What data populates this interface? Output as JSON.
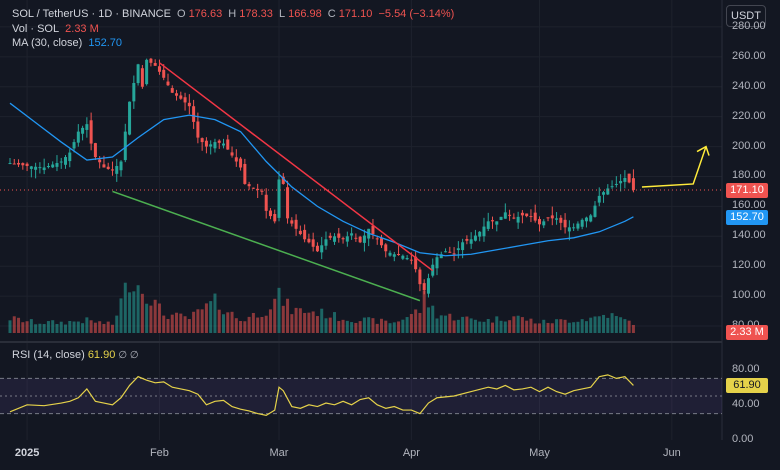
{
  "legend": {
    "symbol": "SOL / TetherUS · 1D · BINANCE",
    "o_label": "O",
    "o": "176.63",
    "h_label": "H",
    "h": "178.33",
    "l_label": "L",
    "l": "166.98",
    "c_label": "C",
    "c": "171.10",
    "change": "−5.54 (−3.14%)",
    "vol_label": "Vol · SOL",
    "vol": "2.33 M",
    "ma_label": "MA (30, close)",
    "ma": "152.70",
    "rsi_label": "RSI (14, close)",
    "rsi": "61.90",
    "rsi_sym": "∅ ∅"
  },
  "currency_button": "USDT",
  "price_tags": {
    "last": "171.10",
    "ma": "152.70",
    "vol": "2.33 M",
    "rsi": "61.90"
  },
  "colors": {
    "up": "#26a69a",
    "down": "#ef5350",
    "ma": "#2196f3",
    "rsi": "#e5d24a",
    "resistance": "#f23645",
    "support": "#4caf50",
    "arrow": "#ffeb3b"
  },
  "chart_data": {
    "type": "candlestick",
    "price_axis": [
      280,
      260,
      240,
      220,
      200,
      180,
      160,
      140,
      120,
      100,
      80
    ],
    "price_axis_labels": [
      "280.00",
      "260.00",
      "240.00",
      "220.00",
      "200.00",
      "180.00",
      "160.00",
      "140.00",
      "120.00",
      "100.00",
      "80.00"
    ],
    "ylim": [
      72,
      298
    ],
    "rsi_axis_labels": [
      "80.00",
      "40.00",
      "0.00"
    ],
    "rsi_axis_values": [
      80,
      40,
      0
    ],
    "rsi_ylim": [
      0,
      100
    ],
    "rsi_band": [
      30,
      70
    ],
    "x_labels": [
      "2025",
      "Feb",
      "Mar",
      "Apr",
      "May",
      "Jun"
    ],
    "x_label_days": [
      4,
      35,
      63,
      94,
      124,
      155
    ],
    "close_path": [
      [
        0,
        189
      ],
      [
        4,
        187
      ],
      [
        8,
        186
      ],
      [
        12,
        190
      ],
      [
        14,
        196
      ],
      [
        16,
        210
      ],
      [
        18,
        215
      ],
      [
        19,
        202
      ],
      [
        20,
        193
      ],
      [
        22,
        186
      ],
      [
        24,
        184
      ],
      [
        26,
        190
      ],
      [
        28,
        230
      ],
      [
        30,
        255
      ],
      [
        31,
        240
      ],
      [
        32,
        258
      ],
      [
        34,
        254
      ],
      [
        36,
        246
      ],
      [
        38,
        236
      ],
      [
        40,
        232
      ],
      [
        42,
        227
      ],
      [
        44,
        206
      ],
      [
        46,
        200
      ],
      [
        48,
        203
      ],
      [
        50,
        202
      ],
      [
        52,
        194
      ],
      [
        54,
        186
      ],
      [
        55,
        175
      ],
      [
        57,
        172
      ],
      [
        59,
        170
      ],
      [
        60,
        157
      ],
      [
        62,
        150
      ],
      [
        63,
        178
      ],
      [
        64,
        175
      ],
      [
        65,
        152
      ],
      [
        67,
        145
      ],
      [
        69,
        138
      ],
      [
        70,
        136
      ],
      [
        72,
        130
      ],
      [
        74,
        138
      ],
      [
        76,
        140
      ],
      [
        78,
        138
      ],
      [
        80,
        142
      ],
      [
        82,
        136
      ],
      [
        84,
        145
      ],
      [
        86,
        138
      ],
      [
        88,
        130
      ],
      [
        90,
        128
      ],
      [
        92,
        127
      ],
      [
        94,
        124
      ],
      [
        95,
        118
      ],
      [
        96,
        108
      ],
      [
        97,
        104
      ],
      [
        98,
        112
      ],
      [
        99,
        121
      ],
      [
        100,
        126
      ],
      [
        102,
        130
      ],
      [
        104,
        128
      ],
      [
        106,
        136
      ],
      [
        108,
        138
      ],
      [
        110,
        143
      ],
      [
        112,
        150
      ],
      [
        114,
        150
      ],
      [
        116,
        156
      ],
      [
        118,
        152
      ],
      [
        120,
        154
      ],
      [
        122,
        153
      ],
      [
        124,
        148
      ],
      [
        126,
        152
      ],
      [
        128,
        152
      ],
      [
        130,
        146
      ],
      [
        132,
        146
      ],
      [
        134,
        151
      ],
      [
        136,
        154
      ],
      [
        138,
        167
      ],
      [
        140,
        172
      ],
      [
        142,
        175
      ],
      [
        144,
        179
      ],
      [
        145,
        176
      ],
      [
        146,
        171
      ]
    ],
    "ma_path": [
      [
        0,
        229
      ],
      [
        6,
        216
      ],
      [
        12,
        203
      ],
      [
        18,
        191
      ],
      [
        24,
        193
      ],
      [
        30,
        206
      ],
      [
        36,
        218
      ],
      [
        42,
        221
      ],
      [
        48,
        218
      ],
      [
        54,
        210
      ],
      [
        60,
        190
      ],
      [
        66,
        173
      ],
      [
        72,
        160
      ],
      [
        78,
        150
      ],
      [
        84,
        142
      ],
      [
        90,
        136
      ],
      [
        96,
        129
      ],
      [
        102,
        127
      ],
      [
        108,
        128
      ],
      [
        114,
        131
      ],
      [
        120,
        134
      ],
      [
        126,
        137
      ],
      [
        132,
        139
      ],
      [
        138,
        143
      ],
      [
        144,
        150
      ],
      [
        146,
        153
      ]
    ],
    "volume_path": [
      [
        0,
        14
      ],
      [
        6,
        10
      ],
      [
        12,
        10
      ],
      [
        18,
        12
      ],
      [
        24,
        8
      ],
      [
        28,
        52
      ],
      [
        30,
        46
      ],
      [
        32,
        38
      ],
      [
        36,
        18
      ],
      [
        42,
        14
      ],
      [
        48,
        30
      ],
      [
        54,
        12
      ],
      [
        60,
        22
      ],
      [
        63,
        35
      ],
      [
        66,
        22
      ],
      [
        72,
        20
      ],
      [
        78,
        14
      ],
      [
        84,
        12
      ],
      [
        90,
        10
      ],
      [
        96,
        22
      ],
      [
        97,
        34
      ],
      [
        100,
        18
      ],
      [
        106,
        14
      ],
      [
        112,
        12
      ],
      [
        118,
        16
      ],
      [
        124,
        10
      ],
      [
        130,
        12
      ],
      [
        136,
        14
      ],
      [
        140,
        18
      ],
      [
        144,
        12
      ],
      [
        146,
        10
      ]
    ],
    "rsi_path": [
      [
        0,
        32
      ],
      [
        4,
        40
      ],
      [
        8,
        39
      ],
      [
        12,
        42
      ],
      [
        14,
        44
      ],
      [
        16,
        48
      ],
      [
        18,
        58
      ],
      [
        20,
        44
      ],
      [
        22,
        42
      ],
      [
        24,
        40
      ],
      [
        26,
        48
      ],
      [
        28,
        62
      ],
      [
        30,
        72
      ],
      [
        32,
        68
      ],
      [
        34,
        65
      ],
      [
        36,
        66
      ],
      [
        38,
        60
      ],
      [
        40,
        58
      ],
      [
        42,
        56
      ],
      [
        44,
        52
      ],
      [
        46,
        40
      ],
      [
        48,
        44
      ],
      [
        50,
        45
      ],
      [
        52,
        38
      ],
      [
        54,
        35
      ],
      [
        56,
        33
      ],
      [
        58,
        30
      ],
      [
        60,
        28
      ],
      [
        62,
        34
      ],
      [
        63,
        60
      ],
      [
        64,
        56
      ],
      [
        66,
        38
      ],
      [
        68,
        36
      ],
      [
        70,
        40
      ],
      [
        72,
        38
      ],
      [
        74,
        42
      ],
      [
        76,
        40
      ],
      [
        78,
        44
      ],
      [
        80,
        40
      ],
      [
        82,
        46
      ],
      [
        84,
        48
      ],
      [
        86,
        40
      ],
      [
        88,
        36
      ],
      [
        90,
        38
      ],
      [
        92,
        34
      ],
      [
        94,
        34
      ],
      [
        96,
        30
      ],
      [
        98,
        42
      ],
      [
        100,
        48
      ],
      [
        104,
        50
      ],
      [
        108,
        55
      ],
      [
        112,
        60
      ],
      [
        114,
        58
      ],
      [
        116,
        62
      ],
      [
        118,
        57
      ],
      [
        120,
        58
      ],
      [
        122,
        60
      ],
      [
        124,
        55
      ],
      [
        126,
        60
      ],
      [
        128,
        55
      ],
      [
        130,
        52
      ],
      [
        132,
        56
      ],
      [
        134,
        58
      ],
      [
        136,
        60
      ],
      [
        138,
        72
      ],
      [
        140,
        74
      ],
      [
        142,
        70
      ],
      [
        144,
        72
      ],
      [
        146,
        62
      ]
    ],
    "resistance_line": [
      [
        35,
        256
      ],
      [
        99,
        117
      ]
    ],
    "support_line": [
      [
        24,
        170
      ],
      [
        96,
        97
      ]
    ],
    "arrow": [
      [
        148,
        173
      ],
      [
        160,
        175
      ],
      [
        163,
        200
      ]
    ]
  }
}
